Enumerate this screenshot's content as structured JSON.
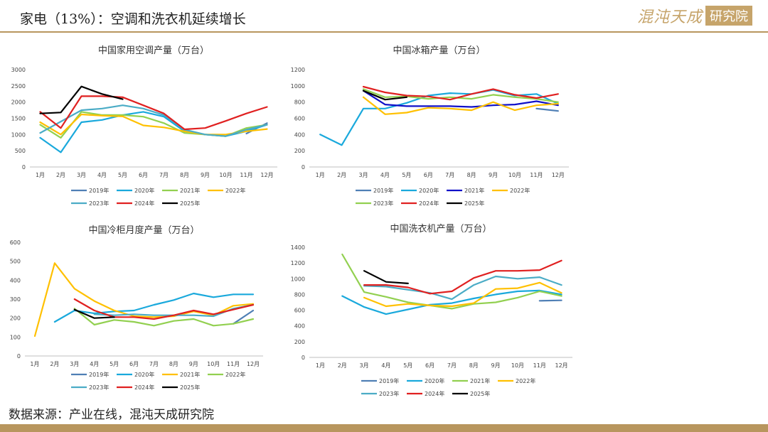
{
  "header": {
    "title": "家电（13%）：空调和洗衣机延续增长",
    "logo_script": "混沌天成",
    "logo_box": "研究院"
  },
  "footer": {
    "source": "数据来源：产业在线，混沌天成研究院"
  },
  "colors": {
    "2019年": "#4f7fb5",
    "2020年": "#1aa9dc",
    "2021年": "#1010c8",
    "2022年": "#ffc000",
    "2023年": "#92d050",
    "2024年": "#e02020",
    "2025年": "#000000",
    "2023年_ac": "#4bacc6",
    "header_rule": "#b8965e"
  },
  "chart_data": [
    {
      "type": "line",
      "title": "中国家用空调产量（万台）",
      "categories": [
        "1月",
        "2月",
        "3月",
        "4月",
        "5月",
        "6月",
        "7月",
        "8月",
        "9月",
        "10月",
        "11月",
        "12月"
      ],
      "ylim": [
        0,
        3000
      ],
      "yticks": [
        0,
        500,
        1000,
        1500,
        2000,
        2500,
        3000
      ],
      "legend": [
        "2019年",
        "2020年",
        "2021年",
        "2022年",
        "2023年",
        "2024年",
        "2025年"
      ],
      "series": [
        {
          "name": "2019年",
          "color": "#4f7fb5",
          "values": [
            null,
            null,
            null,
            null,
            null,
            null,
            null,
            null,
            null,
            null,
            1030,
            1350
          ]
        },
        {
          "name": "2020年",
          "color": "#1aa9dc",
          "values": [
            900,
            450,
            1380,
            1450,
            1600,
            1700,
            1550,
            1100,
            1000,
            950,
            1100,
            1300
          ]
        },
        {
          "name": "2021年",
          "color": "#92d050",
          "values": [
            1300,
            900,
            1700,
            1600,
            1600,
            1550,
            1350,
            1050,
            1000,
            950,
            1200,
            1300
          ]
        },
        {
          "name": "2022年",
          "color": "#ffc000",
          "values": [
            1380,
            1000,
            1620,
            1580,
            1560,
            1280,
            1220,
            1100,
            1000,
            1000,
            1100,
            1170
          ]
        },
        {
          "name": "2023年",
          "color": "#4bacc6",
          "values": [
            1050,
            1400,
            1750,
            1800,
            1900,
            1800,
            1600,
            1150,
            1000,
            950,
            1150,
            1300
          ]
        },
        {
          "name": "2024年",
          "color": "#e02020",
          "values": [
            1700,
            1200,
            2180,
            2180,
            2150,
            1900,
            1650,
            1160,
            1200,
            1420,
            1650,
            1850
          ]
        },
        {
          "name": "2025年",
          "color": "#000000",
          "values": [
            1650,
            1680,
            2480,
            2250,
            2090,
            null,
            null,
            null,
            null,
            null,
            null,
            null
          ]
        }
      ]
    },
    {
      "type": "line",
      "title": "中国冰箱产量（万台）",
      "categories": [
        "1月",
        "2月",
        "3月",
        "4月",
        "5月",
        "6月",
        "7月",
        "8月",
        "9月",
        "10月",
        "11月",
        "12月"
      ],
      "ylim": [
        0,
        1200
      ],
      "yticks": [
        0,
        200,
        400,
        600,
        800,
        1000,
        1200
      ],
      "legend": [
        "2019年",
        "2020年",
        "2021年",
        "2022年",
        "2023年",
        "2024年",
        "2025年"
      ],
      "series": [
        {
          "name": "2019年",
          "color": "#4f7fb5",
          "values": [
            null,
            null,
            null,
            null,
            null,
            null,
            null,
            null,
            null,
            null,
            720,
            690
          ]
        },
        {
          "name": "2020年",
          "color": "#1aa9dc",
          "values": [
            400,
            270,
            720,
            720,
            790,
            880,
            910,
            900,
            950,
            880,
            900,
            780
          ]
        },
        {
          "name": "2021年",
          "color": "#1010c8",
          "values": [
            null,
            null,
            940,
            770,
            750,
            750,
            750,
            740,
            760,
            770,
            810,
            760
          ]
        },
        {
          "name": "2022年",
          "color": "#ffc000",
          "values": [
            null,
            null,
            860,
            650,
            670,
            730,
            720,
            700,
            800,
            700,
            760,
            780
          ]
        },
        {
          "name": "2023年",
          "color": "#92d050",
          "values": [
            null,
            null,
            960,
            860,
            870,
            840,
            860,
            840,
            890,
            860,
            840,
            800
          ]
        },
        {
          "name": "2024年",
          "color": "#e02020",
          "values": [
            null,
            null,
            990,
            920,
            880,
            870,
            830,
            900,
            960,
            890,
            850,
            900
          ]
        },
        {
          "name": "2025年",
          "color": "#000000",
          "values": [
            null,
            null,
            940,
            830,
            860,
            null,
            null,
            null,
            null,
            null,
            null,
            null
          ]
        }
      ]
    },
    {
      "type": "line",
      "title": "中国冷柜月度产量（万台）",
      "categories": [
        "1月",
        "2月",
        "3月",
        "4月",
        "5月",
        "6月",
        "7月",
        "8月",
        "9月",
        "10月",
        "11月",
        "12月"
      ],
      "ylim": [
        0,
        600
      ],
      "yticks": [
        0,
        100,
        200,
        300,
        400,
        500,
        600
      ],
      "legend": [
        "2019年",
        "2020年",
        "2021年",
        "2022年",
        "2023年",
        "2024年",
        "2025年"
      ],
      "series": [
        {
          "name": "2019年",
          "color": "#4f7fb5",
          "values": [
            null,
            null,
            null,
            null,
            null,
            null,
            null,
            null,
            null,
            null,
            170,
            240
          ]
        },
        {
          "name": "2020年",
          "color": "#1aa9dc",
          "values": [
            null,
            180,
            240,
            225,
            235,
            240,
            270,
            295,
            330,
            310,
            325,
            325
          ]
        },
        {
          "name": "2021年",
          "color": "#ffc000",
          "values": [
            105,
            490,
            355,
            290,
            240,
            210,
            205,
            210,
            235,
            215,
            265,
            275
          ]
        },
        {
          "name": "2022年",
          "color": "#92d050",
          "values": [
            null,
            null,
            250,
            165,
            190,
            180,
            160,
            185,
            195,
            160,
            170,
            195
          ]
        },
        {
          "name": "2023年",
          "color": "#4bacc6",
          "values": [
            null,
            null,
            null,
            220,
            215,
            220,
            215,
            215,
            215,
            210,
            250,
            270
          ]
        },
        {
          "name": "2024年",
          "color": "#e02020",
          "values": [
            null,
            null,
            300,
            240,
            205,
            205,
            195,
            215,
            240,
            220,
            245,
            270
          ]
        },
        {
          "name": "2025年",
          "color": "#000000",
          "values": [
            null,
            null,
            245,
            200,
            205,
            null,
            null,
            null,
            null,
            null,
            null,
            null
          ]
        }
      ]
    },
    {
      "type": "line",
      "title": "中国洗衣机产量（万台）",
      "categories": [
        "1月",
        "2月",
        "3月",
        "4月",
        "5月",
        "6月",
        "7月",
        "8月",
        "9月",
        "10月",
        "11月",
        "12月"
      ],
      "ylim": [
        0,
        1400
      ],
      "yticks": [
        0,
        200,
        400,
        600,
        800,
        1000,
        1200,
        1400
      ],
      "legend": [
        "2019年",
        "2020年",
        "2021年",
        "2022年",
        "2023年",
        "2024年",
        "2025年"
      ],
      "series": [
        {
          "name": "2019年",
          "color": "#4f7fb5",
          "values": [
            null,
            null,
            null,
            null,
            null,
            null,
            null,
            null,
            null,
            null,
            720,
            725
          ]
        },
        {
          "name": "2020年",
          "color": "#1aa9dc",
          "values": [
            null,
            780,
            640,
            550,
            610,
            670,
            690,
            750,
            800,
            840,
            850,
            800
          ]
        },
        {
          "name": "2021年",
          "color": "#92d050",
          "values": [
            null,
            1310,
            830,
            770,
            700,
            660,
            620,
            680,
            700,
            760,
            840,
            780
          ]
        },
        {
          "name": "2022年",
          "color": "#ffc000",
          "values": [
            null,
            null,
            760,
            650,
            680,
            660,
            650,
            690,
            870,
            880,
            950,
            820
          ]
        },
        {
          "name": "2023年",
          "color": "#4bacc6",
          "values": [
            null,
            null,
            910,
            900,
            860,
            820,
            740,
            920,
            1030,
            1000,
            1020,
            920
          ]
        },
        {
          "name": "2024年",
          "color": "#e02020",
          "values": [
            null,
            null,
            920,
            920,
            890,
            810,
            840,
            1010,
            1100,
            1100,
            1110,
            1230
          ]
        },
        {
          "name": "2025年",
          "color": "#000000",
          "values": [
            null,
            null,
            1100,
            960,
            940,
            null,
            null,
            null,
            null,
            null,
            null,
            null
          ]
        }
      ]
    }
  ]
}
